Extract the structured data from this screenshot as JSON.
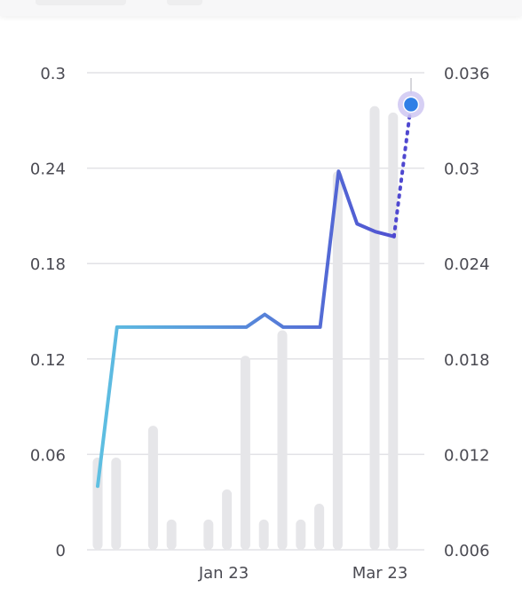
{
  "chart_data": {
    "type": "bar+line",
    "x_tick_labels": [
      "Jan 23",
      "Mar 23"
    ],
    "y_left": {
      "ticks": [
        "0",
        "0.06",
        "0.12",
        "0.18",
        "0.24",
        "0.3"
      ],
      "range": [
        0,
        0.3
      ]
    },
    "y_right": {
      "ticks": [
        "0.006",
        "0.012",
        "0.018",
        "0.024",
        "0.03",
        "0.036"
      ],
      "range": [
        0.006,
        0.036
      ]
    },
    "bars": {
      "axis": "left",
      "values": [
        0.058,
        0.058,
        0,
        0.078,
        0.019,
        0,
        0.019,
        0.038,
        0.122,
        0.019,
        0.138,
        0.019,
        0.029,
        0.238,
        0,
        0.279,
        0.275
      ]
    },
    "line": {
      "axis": "left",
      "values": [
        0.04,
        0.14,
        0.14,
        0.14,
        0.14,
        0.14,
        0.14,
        0.14,
        0.14,
        0.148,
        0.14,
        0.14,
        0.14,
        0.238,
        0.205,
        0.2,
        0.197
      ],
      "projection": {
        "from_index": 16,
        "to_value": 0.28
      }
    },
    "grid": "horizontal",
    "colors": {
      "bar": "#e6e6e9",
      "line_start": "#5ec3e2",
      "line_end": "#4f48d0",
      "marker": "#2f7fe6",
      "marker_halo": "#cfc7f2",
      "grid": "#e2e2e6"
    }
  }
}
